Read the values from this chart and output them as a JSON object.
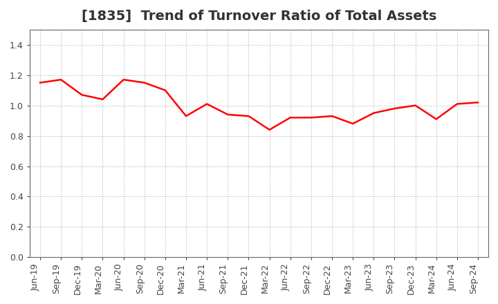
{
  "title": "[1835]  Trend of Turnover Ratio of Total Assets",
  "x_labels": [
    "Jun-19",
    "Sep-19",
    "Dec-19",
    "Mar-20",
    "Jun-20",
    "Sep-20",
    "Dec-20",
    "Mar-21",
    "Jun-21",
    "Sep-21",
    "Dec-21",
    "Mar-22",
    "Jun-22",
    "Sep-22",
    "Dec-22",
    "Mar-23",
    "Jun-23",
    "Sep-23",
    "Dec-23",
    "Mar-24",
    "Jun-24",
    "Sep-24"
  ],
  "y_values": [
    1.15,
    1.17,
    1.07,
    1.04,
    1.17,
    1.15,
    1.1,
    0.93,
    1.01,
    0.94,
    0.93,
    0.84,
    0.92,
    0.92,
    0.93,
    0.88,
    0.95,
    0.98,
    1.0,
    0.91,
    1.01,
    1.02
  ],
  "line_color": "#ff0000",
  "line_width": 1.8,
  "ylim": [
    0.0,
    1.5
  ],
  "yticks": [
    0.0,
    0.2,
    0.4,
    0.6,
    0.8,
    1.0,
    1.2,
    1.4
  ],
  "background_color": "#ffffff",
  "grid_color": "#aaaaaa",
  "title_fontsize": 14,
  "tick_fontsize": 9,
  "title_color": "#333333"
}
